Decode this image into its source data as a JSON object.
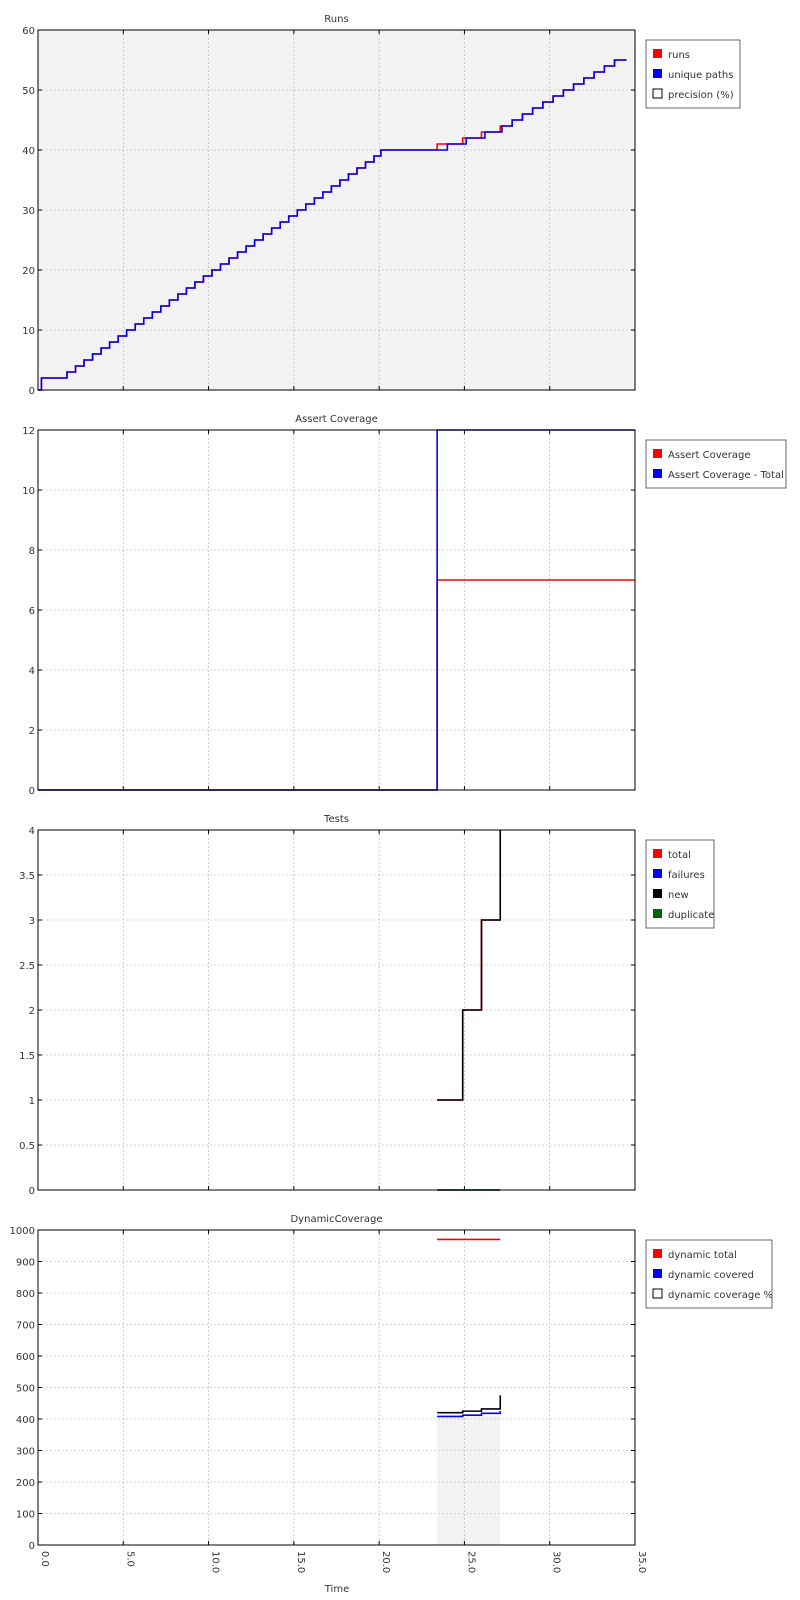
{
  "xlabel": "Time",
  "x_ticks": [
    "0.0",
    "5.0",
    "10.0",
    "15.0",
    "20.0",
    "25.0",
    "30.0",
    "35.0"
  ],
  "colors": {
    "red": "#ff0000",
    "blue": "#0000ff",
    "black": "#000000",
    "green": "#006400",
    "panel_bg": "#f2f2f2",
    "grid": "#b0b0b0"
  },
  "chart_data": [
    {
      "type": "line",
      "title": "Runs",
      "xlim": [
        0,
        35
      ],
      "ylim": [
        0,
        60
      ],
      "y_ticks": [
        "0",
        "10",
        "20",
        "30",
        "40",
        "50",
        "60"
      ],
      "y_tick_values": [
        0,
        10,
        20,
        30,
        40,
        50,
        60
      ],
      "background": "#f2f2f2",
      "grid": true,
      "legend": {
        "placement": "right",
        "entries": [
          {
            "label": "runs",
            "color": "#ff0000",
            "filled": true
          },
          {
            "label": "unique paths",
            "color": "#0000ff",
            "filled": true
          },
          {
            "label": "precision (%)",
            "color": "#000000",
            "filled": false
          }
        ]
      },
      "series": [
        {
          "name": "runs",
          "color": "#ff0000",
          "step": true,
          "x": [
            0,
            0.2,
            1.7,
            2.2,
            2.7,
            3.2,
            3.7,
            4.2,
            4.7,
            5.2,
            5.7,
            6.2,
            6.7,
            7.2,
            7.7,
            8.2,
            8.7,
            9.2,
            9.7,
            10.2,
            10.7,
            11.2,
            11.7,
            12.2,
            12.7,
            13.2,
            13.7,
            14.2,
            14.7,
            15.2,
            15.7,
            16.2,
            16.7,
            17.2,
            17.7,
            18.2,
            18.7,
            19.2,
            19.7,
            20.1,
            23.4,
            24.9,
            26.0,
            27.1,
            27.8,
            28.4,
            29.0,
            29.6,
            30.2,
            30.8,
            31.4,
            32.0,
            32.6,
            33.2,
            33.8,
            34.5
          ],
          "y": [
            0,
            2,
            3,
            4,
            5,
            6,
            7,
            8,
            9,
            10,
            11,
            12,
            13,
            14,
            15,
            16,
            17,
            18,
            19,
            20,
            21,
            22,
            23,
            24,
            25,
            26,
            27,
            28,
            29,
            30,
            31,
            32,
            33,
            34,
            35,
            36,
            37,
            38,
            39,
            40,
            41,
            42,
            43,
            44,
            45,
            46,
            47,
            48,
            49,
            50,
            51,
            52,
            53,
            54,
            55,
            55
          ]
        },
        {
          "name": "unique paths",
          "color": "#0000ff",
          "step": true,
          "x": [
            0,
            0.2,
            1.7,
            2.2,
            2.7,
            3.2,
            3.7,
            4.2,
            4.7,
            5.2,
            5.7,
            6.2,
            6.7,
            7.2,
            7.7,
            8.2,
            8.7,
            9.2,
            9.7,
            10.2,
            10.7,
            11.2,
            11.7,
            12.2,
            12.7,
            13.2,
            13.7,
            14.2,
            14.7,
            15.2,
            15.7,
            16.2,
            16.7,
            17.2,
            17.7,
            18.2,
            18.7,
            19.2,
            19.7,
            20.1,
            24.0,
            25.1,
            26.2,
            27.2,
            27.8,
            28.4,
            29.0,
            29.6,
            30.2,
            30.8,
            31.4,
            32.0,
            32.6,
            33.2,
            33.8,
            34.5
          ],
          "y": [
            0,
            2,
            3,
            4,
            5,
            6,
            7,
            8,
            9,
            10,
            11,
            12,
            13,
            14,
            15,
            16,
            17,
            18,
            19,
            20,
            21,
            22,
            23,
            24,
            25,
            26,
            27,
            28,
            29,
            30,
            31,
            32,
            33,
            34,
            35,
            36,
            37,
            38,
            39,
            40,
            41,
            42,
            43,
            44,
            45,
            46,
            47,
            48,
            49,
            50,
            51,
            52,
            53,
            54,
            55,
            55
          ]
        }
      ]
    },
    {
      "type": "line",
      "title": "Assert Coverage",
      "xlim": [
        0,
        35
      ],
      "ylim": [
        0,
        12
      ],
      "y_ticks": [
        "0",
        "2",
        "4",
        "6",
        "8",
        "10",
        "12"
      ],
      "y_tick_values": [
        0,
        2,
        4,
        6,
        8,
        10,
        12
      ],
      "background": "#ffffff",
      "grid": true,
      "legend": {
        "placement": "right",
        "entries": [
          {
            "label": "Assert Coverage",
            "color": "#ff0000",
            "filled": true
          },
          {
            "label": "Assert Coverage - Total",
            "color": "#0000ff",
            "filled": true
          }
        ]
      },
      "series": [
        {
          "name": "Assert Coverage",
          "color": "#ff0000",
          "step": true,
          "x": [
            0,
            23.4,
            35
          ],
          "y": [
            0,
            7,
            7
          ]
        },
        {
          "name": "Assert Coverage - Total",
          "color": "#0000ff",
          "step": true,
          "x": [
            0,
            23.4,
            35
          ],
          "y": [
            0,
            12,
            12
          ]
        }
      ]
    },
    {
      "type": "line",
      "title": "Tests",
      "xlim": [
        0,
        35
      ],
      "ylim": [
        0,
        4
      ],
      "y_ticks": [
        "0",
        "0.5",
        "1",
        "1.5",
        "2",
        "2.5",
        "3",
        "3.5",
        "4"
      ],
      "y_tick_values": [
        0,
        0.5,
        1,
        1.5,
        2,
        2.5,
        3,
        3.5,
        4
      ],
      "background": "#ffffff",
      "grid": true,
      "legend": {
        "placement": "right",
        "entries": [
          {
            "label": "total",
            "color": "#ff0000",
            "filled": true
          },
          {
            "label": "failures",
            "color": "#0000ff",
            "filled": true
          },
          {
            "label": "new",
            "color": "#000000",
            "filled": true
          },
          {
            "label": "duplicate",
            "color": "#006400",
            "filled": true
          }
        ]
      },
      "series": [
        {
          "name": "total",
          "color": "#ff0000",
          "step": true,
          "x": [
            23.4,
            24.9,
            26.0,
            27.1,
            27.1
          ],
          "y": [
            1,
            2,
            3,
            4,
            4
          ]
        },
        {
          "name": "failures",
          "color": "#0000ff",
          "step": true,
          "x": [
            23.4,
            27.1
          ],
          "y": [
            0,
            0
          ]
        },
        {
          "name": "new",
          "color": "#000000",
          "step": true,
          "x": [
            23.4,
            24.9,
            26.0,
            27.1,
            27.1
          ],
          "y": [
            1,
            2,
            3,
            4,
            4
          ]
        },
        {
          "name": "duplicate",
          "color": "#006400",
          "step": true,
          "x": [
            23.4,
            27.1
          ],
          "y": [
            0,
            0
          ]
        }
      ]
    },
    {
      "type": "line",
      "title": "DynamicCoverage",
      "xlim": [
        0,
        35
      ],
      "ylim": [
        0,
        1000
      ],
      "y_ticks": [
        "0",
        "100",
        "200",
        "300",
        "400",
        "500",
        "600",
        "700",
        "800",
        "900",
        "1000"
      ],
      "y_tick_values": [
        0,
        100,
        200,
        300,
        400,
        500,
        600,
        700,
        800,
        900,
        1000
      ],
      "background": "#ffffff",
      "grid": true,
      "legend": {
        "placement": "right",
        "entries": [
          {
            "label": "dynamic total",
            "color": "#ff0000",
            "filled": true
          },
          {
            "label": "dynamic covered",
            "color": "#0000ff",
            "filled": true
          },
          {
            "label": "dynamic coverage %",
            "color": "#000000",
            "filled": false
          }
        ]
      },
      "area": {
        "x": [
          23.4,
          27.1
        ],
        "y": 410,
        "color": "#f2f2f2"
      },
      "series": [
        {
          "name": "dynamic total",
          "color": "#ff0000",
          "step": true,
          "x": [
            23.4,
            27.1
          ],
          "y": [
            970,
            970
          ]
        },
        {
          "name": "dynamic covered",
          "color": "#0000ff",
          "step": true,
          "x": [
            23.4,
            24.9,
            26.0,
            27.1,
            27.1
          ],
          "y": [
            408,
            412,
            418,
            425,
            425
          ]
        },
        {
          "name": "dynamic coverage %",
          "color": "#000000",
          "step": true,
          "x": [
            23.4,
            24.9,
            26.0,
            27.1,
            27.1
          ],
          "y": [
            420,
            425,
            432,
            438,
            475
          ]
        }
      ]
    }
  ]
}
